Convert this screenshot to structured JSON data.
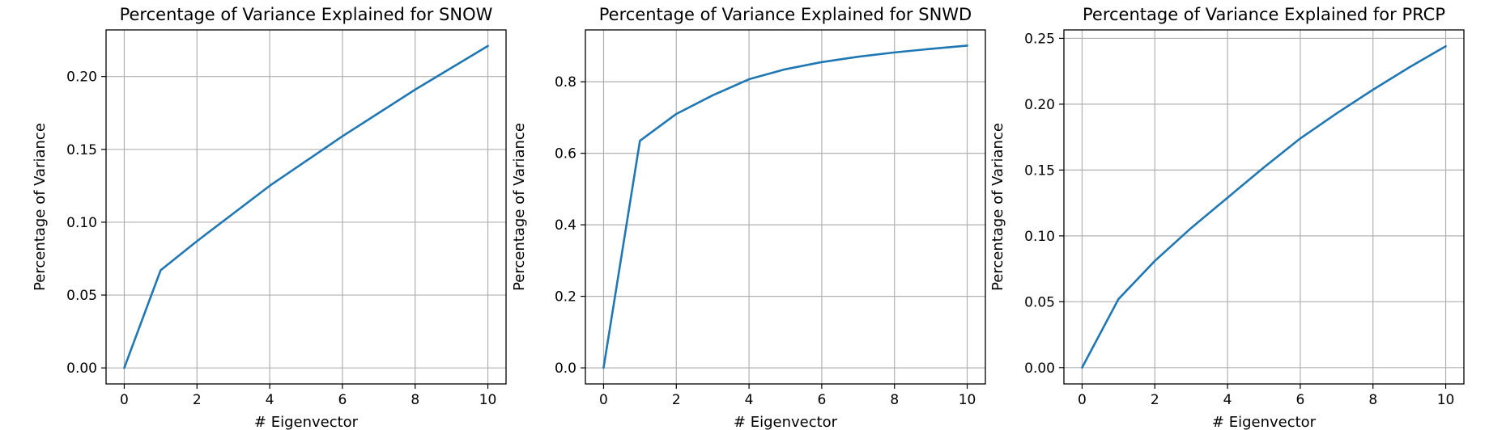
{
  "chart_data": [
    {
      "type": "line",
      "title": "Percentage of Variance Explained for SNOW",
      "xlabel": "# Eigenvector",
      "ylabel": "Percentage of Variance",
      "xlim": [
        -0.5,
        10.5
      ],
      "ylim": [
        -0.011,
        0.232
      ],
      "xticks": [
        0,
        2,
        4,
        6,
        8,
        10
      ],
      "xtick_labels": [
        "0",
        "2",
        "4",
        "6",
        "8",
        "10"
      ],
      "yticks": [
        0,
        0.05,
        0.1,
        0.15,
        0.2
      ],
      "ytick_labels": [
        "0.00",
        "0.05",
        "0.10",
        "0.15",
        "0.20"
      ],
      "grid": true,
      "color": "#1f77b4",
      "x": [
        0,
        1,
        2,
        3,
        4,
        5,
        6,
        7,
        8,
        9,
        10
      ],
      "y": [
        0.0,
        0.067,
        0.087,
        0.106,
        0.125,
        0.142,
        0.159,
        0.175,
        0.191,
        0.206,
        0.221
      ]
    },
    {
      "type": "line",
      "title": "Percentage of Variance Explained for SNWD",
      "xlabel": "# Eigenvector",
      "ylabel": "Percentage of Variance",
      "xlim": [
        -0.5,
        10.5
      ],
      "ylim": [
        -0.045,
        0.945
      ],
      "xticks": [
        0,
        2,
        4,
        6,
        8,
        10
      ],
      "xtick_labels": [
        "0",
        "2",
        "4",
        "6",
        "8",
        "10"
      ],
      "yticks": [
        0,
        0.2,
        0.4,
        0.6,
        0.8
      ],
      "ytick_labels": [
        "0.0",
        "0.2",
        "0.4",
        "0.6",
        "0.8"
      ],
      "grid": true,
      "color": "#1f77b4",
      "x": [
        0,
        1,
        2,
        3,
        4,
        5,
        6,
        7,
        8,
        9,
        10
      ],
      "y": [
        0.0,
        0.635,
        0.71,
        0.762,
        0.807,
        0.835,
        0.855,
        0.87,
        0.882,
        0.892,
        0.901
      ]
    },
    {
      "type": "line",
      "title": "Percentage of Variance Explained for PRCP",
      "xlabel": "# Eigenvector",
      "ylabel": "Percentage of Variance",
      "xlim": [
        -0.5,
        10.5
      ],
      "ylim": [
        -0.0124,
        0.2564
      ],
      "xticks": [
        0,
        2,
        4,
        6,
        8,
        10
      ],
      "xtick_labels": [
        "0",
        "2",
        "4",
        "6",
        "8",
        "10"
      ],
      "yticks": [
        0,
        0.05,
        0.1,
        0.15,
        0.2,
        0.25
      ],
      "ytick_labels": [
        "0.00",
        "0.05",
        "0.10",
        "0.15",
        "0.20",
        "0.25"
      ],
      "grid": true,
      "color": "#1f77b4",
      "x": [
        0,
        1,
        2,
        3,
        4,
        5,
        6,
        7,
        8,
        9,
        10
      ],
      "y": [
        0.0,
        0.052,
        0.081,
        0.106,
        0.129,
        0.152,
        0.174,
        0.193,
        0.211,
        0.228,
        0.244
      ]
    }
  ]
}
